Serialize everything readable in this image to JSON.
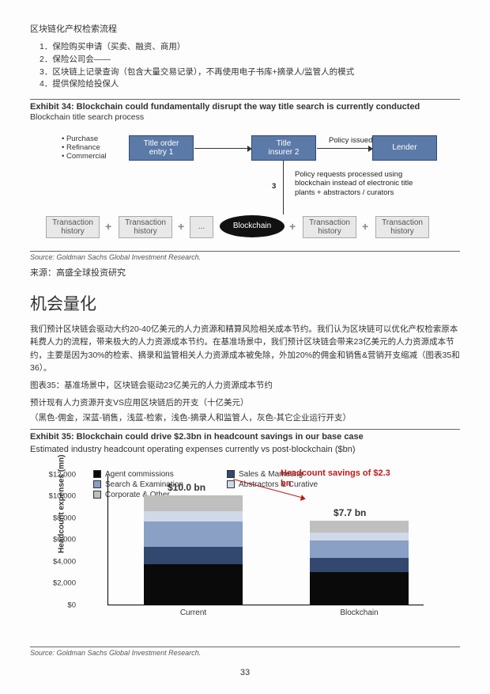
{
  "title_cn": "区块链化产权检索流程",
  "list": [
    "1．保险购买申请（买卖、融资、商用）",
    "2．保险公司会——",
    "3．区块链上记录查询（包含大量交易记录），不再使用电子书库+摘录人/监管人的模式",
    "4．提供保险给投保人"
  ],
  "exhibit34": {
    "title": "Exhibit 34: Blockchain could fundamentally disrupt the way title search is currently conducted",
    "subtitle": "Blockchain title search process",
    "bullets": [
      "Purchase",
      "Refinance",
      "Commercial"
    ],
    "nodes": {
      "title_order": "Title order\nentry   1",
      "title_insurer": "Title\ninsurer  2",
      "lender": "Lender",
      "blockchain": "Blockchain",
      "tx_hist": "Transaction\nhistory"
    },
    "policy_issued": "Policy issued",
    "policy_desc": "Policy requests processed using\nblockchain instead of electronic title\nplants + abstractors / curators",
    "num3": "3",
    "source": "Source: Goldman Sachs Global Investment Research."
  },
  "source_cn": "来源：高盛全球投资研究",
  "section_h2": "机会量化",
  "para1": "我们预计区块链会驱动大约20-40亿美元的人力资源和精算风险相关成本节约。我们认为区块链可以优化产权检索原本耗费人力的流程，带来极大的人力资源成本节约。在基准场景中，我们预计区块链会带来23亿美元的人力资源成本节约，主要是因为30%的检索、摘录和监管相关人力资源成本被免除，外加20%的佣金和销售&营销开支缩减（图表35和36）。",
  "fig35_cn_title": "图表35：基准场景中，区块链会驱动23亿美元的人力资源成本节约",
  "fig35_cn_sub": "预计现有人力资源开支VS应用区块链后的开支（十亿美元）",
  "fig35_cn_legend": "（黑色-佣金，深蓝-销售，浅蓝-检索，浅色-摘录人和监管人，灰色-其它企业运行开支）",
  "exhibit35": {
    "title": "Exhibit 35: Blockchain could drive $2.3bn in headcount savings in our base case",
    "subtitle": "Estimated industry headcount operating expenses currently vs post-blockchain ($bn)",
    "y_label": "Headcount expenses (mn)",
    "y_max": 12000,
    "y_tick_step": 2000,
    "bars": [
      {
        "label": "Current",
        "segments": [
          {
            "key": "agent",
            "value": 3700
          },
          {
            "key": "sales",
            "value": 1600
          },
          {
            "key": "search",
            "value": 2300
          },
          {
            "key": "abstract",
            "value": 1000
          },
          {
            "key": "corp",
            "value": 1400
          }
        ],
        "total": "$10.0 bn"
      },
      {
        "label": "Blockchain",
        "segments": [
          {
            "key": "agent",
            "value": 3000
          },
          {
            "key": "sales",
            "value": 1300
          },
          {
            "key": "search",
            "value": 1600
          },
          {
            "key": "abstract",
            "value": 700
          },
          {
            "key": "corp",
            "value": 1100
          }
        ],
        "total": "$7.7 bn"
      }
    ],
    "series_colors": {
      "agent": "#0a0a0a",
      "sales": "#33486f",
      "search": "#8aa0c4",
      "abstract": "#cfd9e8",
      "corp": "#bfbfbf"
    },
    "legend": [
      {
        "key": "agent",
        "label": "Agent commissions"
      },
      {
        "key": "sales",
        "label": "Sales & Marketing"
      },
      {
        "key": "search",
        "label": "Search & Examination"
      },
      {
        "key": "abstract",
        "label": "Abstractors & Curative"
      },
      {
        "key": "corp",
        "label": "Corporate & Other"
      }
    ],
    "savings_label": "Headcount savings of $2.3\nbn",
    "source": "Source: Goldman Sachs Global Investment Research."
  },
  "page_number": "33"
}
